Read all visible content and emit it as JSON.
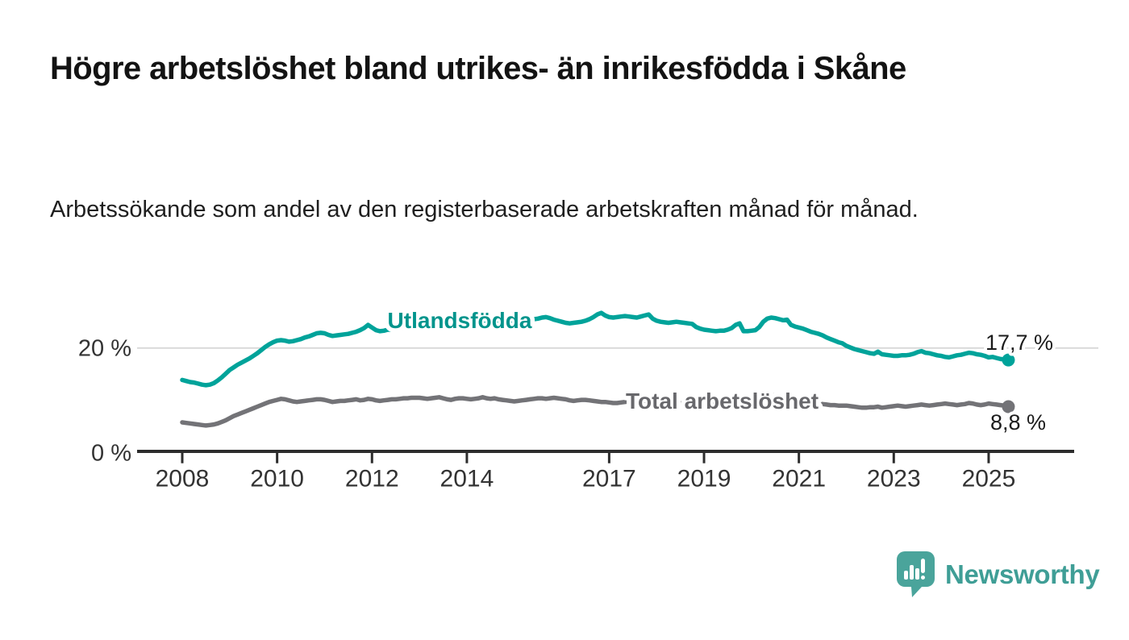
{
  "page": {
    "title": "Högre arbetslöshet bland utrikes- än inrikesfödda i Skåne",
    "subtitle": "Arbetssökande som andel av den registerbaserade arbetskraften månad för månad."
  },
  "branding": {
    "logo_text": "Newsworthy",
    "logo_text_color": "#3f9e96",
    "logo_icon": "bar-chart-speech-bubble-icon",
    "logo_icon_color": "#4aa49b"
  },
  "chart_data": {
    "type": "line",
    "title": "Högre arbetslöshet bland utrikes- än inrikesfödda i Skåne",
    "subtitle": "Arbetssökande som andel av den registerbaserade arbetskraften månad för månad.",
    "x_unit": "month",
    "x_start": "2008-01",
    "x_end": "2025-06",
    "x_tick_years": [
      2008,
      2010,
      2012,
      2014,
      2017,
      2019,
      2021,
      2023,
      2025
    ],
    "x_tick_labels": [
      "2008",
      "2010",
      "2012",
      "2014",
      "2017",
      "2019",
      "2021",
      "2023",
      "2025"
    ],
    "y_axis": {
      "unit": "%",
      "range": [
        0,
        28
      ],
      "ticks": [
        {
          "value": 0,
          "label": "0 %"
        },
        {
          "value": 20,
          "label": "20 %"
        }
      ],
      "gridline_values": [
        20
      ],
      "grid_color": "#d9d9d9",
      "axis_color": "#2d2d2d",
      "tick_label_color": "#333333"
    },
    "legend_position": "inline-labels",
    "series": [
      {
        "name": "Utlandsfödda",
        "color": "#00a39a",
        "label_color": "#00948c",
        "end_value": 17.7,
        "end_label": "17,7 %",
        "values": [
          13.9,
          13.7,
          13.5,
          13.4,
          13.2,
          13.0,
          12.9,
          13.0,
          13.3,
          13.8,
          14.4,
          15.1,
          15.8,
          16.3,
          16.8,
          17.2,
          17.6,
          18.0,
          18.5,
          19.0,
          19.6,
          20.2,
          20.7,
          21.1,
          21.4,
          21.5,
          21.4,
          21.2,
          21.3,
          21.5,
          21.7,
          22.0,
          22.2,
          22.5,
          22.8,
          22.9,
          22.8,
          22.5,
          22.3,
          22.4,
          22.5,
          22.6,
          22.7,
          22.9,
          23.1,
          23.4,
          23.8,
          24.4,
          23.9,
          23.4,
          23.2,
          23.3,
          23.5,
          23.5,
          23.6,
          23.7,
          23.8,
          23.9,
          24.0,
          24.0,
          23.9,
          23.9,
          24.0,
          24.1,
          24.1,
          24.2,
          24.3,
          24.3,
          24.4,
          24.4,
          24.5,
          24.5,
          24.5,
          24.6,
          24.6,
          24.7,
          24.7,
          24.8,
          24.8,
          24.9,
          25.0,
          25.0,
          25.1,
          25.1,
          25.2,
          25.2,
          25.3,
          25.4,
          25.4,
          25.5,
          25.6,
          25.8,
          25.9,
          25.7,
          25.4,
          25.2,
          25.0,
          24.8,
          24.7,
          24.8,
          24.9,
          25.0,
          25.2,
          25.5,
          25.9,
          26.4,
          26.7,
          26.2,
          25.9,
          25.8,
          25.9,
          26.0,
          26.1,
          26.0,
          25.9,
          25.8,
          26.0,
          26.2,
          26.4,
          25.6,
          25.2,
          25.0,
          24.9,
          24.8,
          24.9,
          25.0,
          24.9,
          24.8,
          24.7,
          24.6,
          24.0,
          23.7,
          23.5,
          23.4,
          23.3,
          23.2,
          23.3,
          23.3,
          23.5,
          23.8,
          24.4,
          24.7,
          23.2,
          23.2,
          23.3,
          23.4,
          24.0,
          25.0,
          25.6,
          25.8,
          25.7,
          25.5,
          25.3,
          25.4,
          24.4,
          24.1,
          23.9,
          23.7,
          23.4,
          23.1,
          22.9,
          22.7,
          22.4,
          22.0,
          21.7,
          21.4,
          21.1,
          20.9,
          20.4,
          20.1,
          19.8,
          19.6,
          19.4,
          19.2,
          19.0,
          18.9,
          19.3,
          18.8,
          18.7,
          18.6,
          18.5,
          18.5,
          18.6,
          18.6,
          18.7,
          18.9,
          19.2,
          19.4,
          19.1,
          19.0,
          18.8,
          18.6,
          18.5,
          18.3,
          18.2,
          18.4,
          18.6,
          18.7,
          18.9,
          19.1,
          19.0,
          18.8,
          18.7,
          18.5,
          18.2,
          18.3,
          18.1,
          17.9,
          17.8,
          17.7
        ]
      },
      {
        "name": "Total arbetslöshet",
        "color": "#737377",
        "label_color": "#68686c",
        "end_value": 8.8,
        "end_label": "8,8 %",
        "values": [
          5.8,
          5.7,
          5.6,
          5.5,
          5.4,
          5.3,
          5.2,
          5.3,
          5.4,
          5.6,
          5.9,
          6.2,
          6.6,
          7.0,
          7.3,
          7.6,
          7.9,
          8.2,
          8.5,
          8.8,
          9.1,
          9.4,
          9.7,
          9.9,
          10.1,
          10.3,
          10.2,
          10.0,
          9.8,
          9.7,
          9.8,
          9.9,
          10.0,
          10.1,
          10.2,
          10.2,
          10.1,
          9.9,
          9.7,
          9.8,
          9.9,
          9.9,
          10.0,
          10.1,
          10.2,
          10.0,
          10.1,
          10.3,
          10.2,
          10.0,
          9.9,
          10.0,
          10.1,
          10.2,
          10.2,
          10.3,
          10.4,
          10.4,
          10.5,
          10.5,
          10.5,
          10.4,
          10.3,
          10.4,
          10.5,
          10.6,
          10.4,
          10.2,
          10.1,
          10.3,
          10.4,
          10.4,
          10.3,
          10.2,
          10.3,
          10.4,
          10.6,
          10.4,
          10.3,
          10.4,
          10.2,
          10.1,
          10.0,
          9.9,
          9.8,
          9.9,
          10.0,
          10.1,
          10.2,
          10.3,
          10.4,
          10.4,
          10.3,
          10.4,
          10.5,
          10.4,
          10.3,
          10.2,
          10.0,
          9.9,
          10.0,
          10.1,
          10.1,
          10.0,
          9.9,
          9.8,
          9.7,
          9.7,
          9.6,
          9.5,
          9.5,
          9.6,
          9.7,
          9.8,
          9.8,
          9.9,
          9.9,
          10.0,
          10.0,
          9.9,
          9.9,
          9.8,
          9.7,
          9.7,
          9.6,
          9.6,
          9.5,
          9.5,
          9.4,
          9.4,
          9.3,
          9.3,
          9.2,
          9.2,
          9.1,
          9.1,
          9.2,
          9.2,
          9.3,
          9.4,
          9.5,
          9.4,
          9.3,
          9.4,
          9.5,
          9.6,
          10.0,
          10.5,
          10.8,
          11.0,
          10.9,
          10.8,
          10.6,
          10.4,
          10.2,
          10.1,
          10.0,
          9.9,
          9.8,
          9.6,
          9.5,
          9.4,
          9.3,
          9.2,
          9.1,
          9.1,
          9.0,
          9.0,
          9.0,
          8.9,
          8.8,
          8.7,
          8.6,
          8.6,
          8.7,
          8.7,
          8.8,
          8.6,
          8.7,
          8.8,
          8.9,
          9.0,
          8.9,
          8.8,
          8.9,
          9.0,
          9.1,
          9.2,
          9.1,
          9.0,
          9.1,
          9.2,
          9.3,
          9.4,
          9.3,
          9.2,
          9.1,
          9.2,
          9.3,
          9.5,
          9.4,
          9.2,
          9.1,
          9.2,
          9.4,
          9.3,
          9.2,
          9.1,
          9.0,
          8.8
        ]
      }
    ],
    "value_label_color": "#1b1b1b"
  }
}
